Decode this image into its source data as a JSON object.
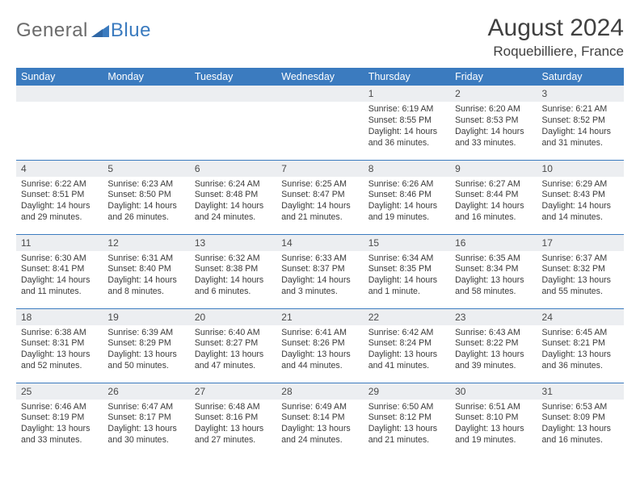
{
  "brand": {
    "word1": "General",
    "word2": "Blue"
  },
  "header": {
    "title": "August 2024",
    "location": "Roquebilliere, France"
  },
  "theme": {
    "accent": "#3b7bbf",
    "dayrow_bg": "#eceef1",
    "text": "#404040"
  },
  "weekdays": [
    "Sunday",
    "Monday",
    "Tuesday",
    "Wednesday",
    "Thursday",
    "Friday",
    "Saturday"
  ],
  "weeks": [
    [
      null,
      null,
      null,
      null,
      {
        "n": "1",
        "sr": "Sunrise: 6:19 AM",
        "ss": "Sunset: 8:55 PM",
        "d1": "Daylight: 14 hours",
        "d2": "and 36 minutes."
      },
      {
        "n": "2",
        "sr": "Sunrise: 6:20 AM",
        "ss": "Sunset: 8:53 PM",
        "d1": "Daylight: 14 hours",
        "d2": "and 33 minutes."
      },
      {
        "n": "3",
        "sr": "Sunrise: 6:21 AM",
        "ss": "Sunset: 8:52 PM",
        "d1": "Daylight: 14 hours",
        "d2": "and 31 minutes."
      }
    ],
    [
      {
        "n": "4",
        "sr": "Sunrise: 6:22 AM",
        "ss": "Sunset: 8:51 PM",
        "d1": "Daylight: 14 hours",
        "d2": "and 29 minutes."
      },
      {
        "n": "5",
        "sr": "Sunrise: 6:23 AM",
        "ss": "Sunset: 8:50 PM",
        "d1": "Daylight: 14 hours",
        "d2": "and 26 minutes."
      },
      {
        "n": "6",
        "sr": "Sunrise: 6:24 AM",
        "ss": "Sunset: 8:48 PM",
        "d1": "Daylight: 14 hours",
        "d2": "and 24 minutes."
      },
      {
        "n": "7",
        "sr": "Sunrise: 6:25 AM",
        "ss": "Sunset: 8:47 PM",
        "d1": "Daylight: 14 hours",
        "d2": "and 21 minutes."
      },
      {
        "n": "8",
        "sr": "Sunrise: 6:26 AM",
        "ss": "Sunset: 8:46 PM",
        "d1": "Daylight: 14 hours",
        "d2": "and 19 minutes."
      },
      {
        "n": "9",
        "sr": "Sunrise: 6:27 AM",
        "ss": "Sunset: 8:44 PM",
        "d1": "Daylight: 14 hours",
        "d2": "and 16 minutes."
      },
      {
        "n": "10",
        "sr": "Sunrise: 6:29 AM",
        "ss": "Sunset: 8:43 PM",
        "d1": "Daylight: 14 hours",
        "d2": "and 14 minutes."
      }
    ],
    [
      {
        "n": "11",
        "sr": "Sunrise: 6:30 AM",
        "ss": "Sunset: 8:41 PM",
        "d1": "Daylight: 14 hours",
        "d2": "and 11 minutes."
      },
      {
        "n": "12",
        "sr": "Sunrise: 6:31 AM",
        "ss": "Sunset: 8:40 PM",
        "d1": "Daylight: 14 hours",
        "d2": "and 8 minutes."
      },
      {
        "n": "13",
        "sr": "Sunrise: 6:32 AM",
        "ss": "Sunset: 8:38 PM",
        "d1": "Daylight: 14 hours",
        "d2": "and 6 minutes."
      },
      {
        "n": "14",
        "sr": "Sunrise: 6:33 AM",
        "ss": "Sunset: 8:37 PM",
        "d1": "Daylight: 14 hours",
        "d2": "and 3 minutes."
      },
      {
        "n": "15",
        "sr": "Sunrise: 6:34 AM",
        "ss": "Sunset: 8:35 PM",
        "d1": "Daylight: 14 hours",
        "d2": "and 1 minute."
      },
      {
        "n": "16",
        "sr": "Sunrise: 6:35 AM",
        "ss": "Sunset: 8:34 PM",
        "d1": "Daylight: 13 hours",
        "d2": "and 58 minutes."
      },
      {
        "n": "17",
        "sr": "Sunrise: 6:37 AM",
        "ss": "Sunset: 8:32 PM",
        "d1": "Daylight: 13 hours",
        "d2": "and 55 minutes."
      }
    ],
    [
      {
        "n": "18",
        "sr": "Sunrise: 6:38 AM",
        "ss": "Sunset: 8:31 PM",
        "d1": "Daylight: 13 hours",
        "d2": "and 52 minutes."
      },
      {
        "n": "19",
        "sr": "Sunrise: 6:39 AM",
        "ss": "Sunset: 8:29 PM",
        "d1": "Daylight: 13 hours",
        "d2": "and 50 minutes."
      },
      {
        "n": "20",
        "sr": "Sunrise: 6:40 AM",
        "ss": "Sunset: 8:27 PM",
        "d1": "Daylight: 13 hours",
        "d2": "and 47 minutes."
      },
      {
        "n": "21",
        "sr": "Sunrise: 6:41 AM",
        "ss": "Sunset: 8:26 PM",
        "d1": "Daylight: 13 hours",
        "d2": "and 44 minutes."
      },
      {
        "n": "22",
        "sr": "Sunrise: 6:42 AM",
        "ss": "Sunset: 8:24 PM",
        "d1": "Daylight: 13 hours",
        "d2": "and 41 minutes."
      },
      {
        "n": "23",
        "sr": "Sunrise: 6:43 AM",
        "ss": "Sunset: 8:22 PM",
        "d1": "Daylight: 13 hours",
        "d2": "and 39 minutes."
      },
      {
        "n": "24",
        "sr": "Sunrise: 6:45 AM",
        "ss": "Sunset: 8:21 PM",
        "d1": "Daylight: 13 hours",
        "d2": "and 36 minutes."
      }
    ],
    [
      {
        "n": "25",
        "sr": "Sunrise: 6:46 AM",
        "ss": "Sunset: 8:19 PM",
        "d1": "Daylight: 13 hours",
        "d2": "and 33 minutes."
      },
      {
        "n": "26",
        "sr": "Sunrise: 6:47 AM",
        "ss": "Sunset: 8:17 PM",
        "d1": "Daylight: 13 hours",
        "d2": "and 30 minutes."
      },
      {
        "n": "27",
        "sr": "Sunrise: 6:48 AM",
        "ss": "Sunset: 8:16 PM",
        "d1": "Daylight: 13 hours",
        "d2": "and 27 minutes."
      },
      {
        "n": "28",
        "sr": "Sunrise: 6:49 AM",
        "ss": "Sunset: 8:14 PM",
        "d1": "Daylight: 13 hours",
        "d2": "and 24 minutes."
      },
      {
        "n": "29",
        "sr": "Sunrise: 6:50 AM",
        "ss": "Sunset: 8:12 PM",
        "d1": "Daylight: 13 hours",
        "d2": "and 21 minutes."
      },
      {
        "n": "30",
        "sr": "Sunrise: 6:51 AM",
        "ss": "Sunset: 8:10 PM",
        "d1": "Daylight: 13 hours",
        "d2": "and 19 minutes."
      },
      {
        "n": "31",
        "sr": "Sunrise: 6:53 AM",
        "ss": "Sunset: 8:09 PM",
        "d1": "Daylight: 13 hours",
        "d2": "and 16 minutes."
      }
    ]
  ]
}
